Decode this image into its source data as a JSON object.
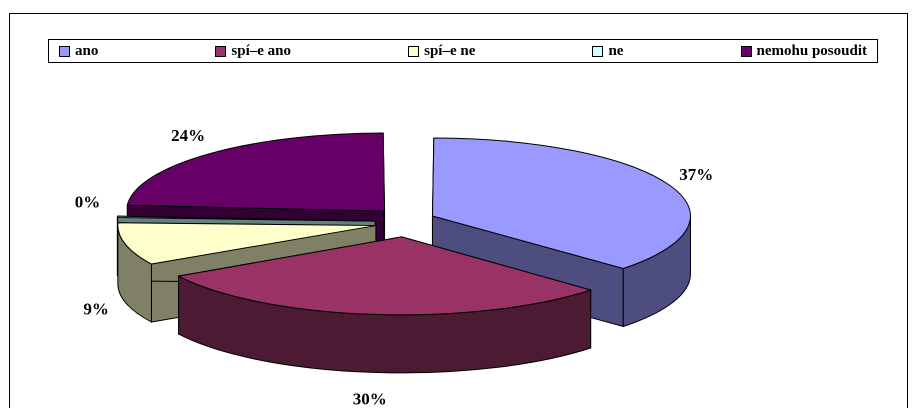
{
  "chart_data": {
    "type": "pie",
    "style": "3d-exploded",
    "categories": [
      "ano",
      "spí–e ano",
      "spí–e ne",
      "ne",
      "nemohu posoudit"
    ],
    "values": [
      37,
      30,
      9,
      0,
      24
    ],
    "value_labels": [
      "37%",
      "30%",
      "9%",
      "0%",
      "24%"
    ],
    "colors": [
      "#9999FF",
      "#993366",
      "#FFFFCC",
      "#CCFFFF",
      "#660066"
    ],
    "side_colors": [
      "#4D4D80",
      "#4D1A33",
      "#808066",
      "#668080",
      "#330033"
    ],
    "legend_position": "top",
    "title": ""
  }
}
